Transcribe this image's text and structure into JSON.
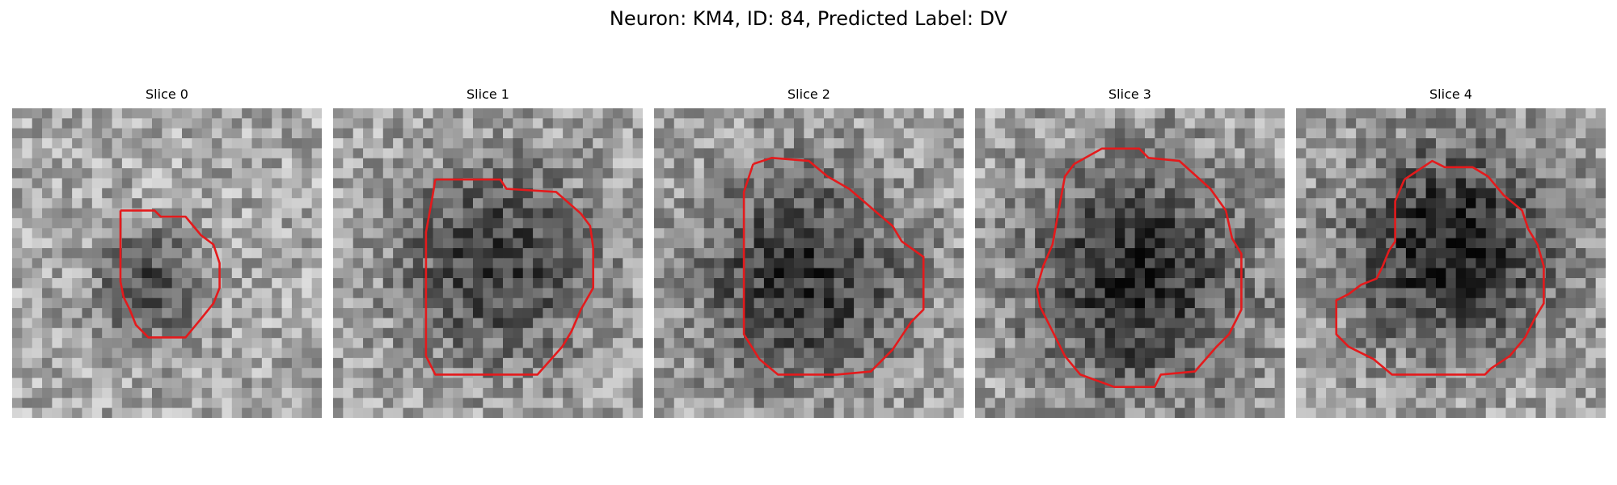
{
  "figure": {
    "suptitle": "Neuron: KM4, ID: 84, Predicted Label: DV"
  },
  "colors": {
    "background": "#ffffff",
    "contour": "#e41a1c",
    "colormap": "gray"
  },
  "slices": [
    {
      "title": "Slice 0",
      "seed": 11,
      "blob_center": [
        0.45,
        0.58
      ],
      "blob_strength": 0.4,
      "blob_radius": 0.2,
      "contour": [
        [
          0.35,
          0.33
        ],
        [
          0.46,
          0.33
        ],
        [
          0.48,
          0.35
        ],
        [
          0.56,
          0.35
        ],
        [
          0.61,
          0.41
        ],
        [
          0.65,
          0.44
        ],
        [
          0.67,
          0.5
        ],
        [
          0.67,
          0.58
        ],
        [
          0.65,
          0.63
        ],
        [
          0.61,
          0.68
        ],
        [
          0.56,
          0.74
        ],
        [
          0.44,
          0.74
        ],
        [
          0.4,
          0.7
        ],
        [
          0.38,
          0.65
        ],
        [
          0.36,
          0.61
        ],
        [
          0.35,
          0.56
        ]
      ]
    },
    {
      "title": "Slice 1",
      "seed": 23,
      "blob_center": [
        0.53,
        0.5
      ],
      "blob_strength": 0.42,
      "blob_radius": 0.38,
      "contour": [
        [
          0.33,
          0.23
        ],
        [
          0.54,
          0.23
        ],
        [
          0.56,
          0.26
        ],
        [
          0.72,
          0.27
        ],
        [
          0.8,
          0.34
        ],
        [
          0.83,
          0.38
        ],
        [
          0.84,
          0.45
        ],
        [
          0.84,
          0.58
        ],
        [
          0.8,
          0.65
        ],
        [
          0.77,
          0.72
        ],
        [
          0.74,
          0.77
        ],
        [
          0.66,
          0.86
        ],
        [
          0.33,
          0.86
        ],
        [
          0.3,
          0.8
        ],
        [
          0.3,
          0.4
        ],
        [
          0.32,
          0.29
        ]
      ]
    },
    {
      "title": "Slice 2",
      "seed": 37,
      "blob_center": [
        0.48,
        0.55
      ],
      "blob_strength": 0.45,
      "blob_radius": 0.42,
      "contour": [
        [
          0.32,
          0.18
        ],
        [
          0.38,
          0.16
        ],
        [
          0.5,
          0.17
        ],
        [
          0.56,
          0.22
        ],
        [
          0.63,
          0.26
        ],
        [
          0.7,
          0.32
        ],
        [
          0.77,
          0.38
        ],
        [
          0.8,
          0.43
        ],
        [
          0.87,
          0.48
        ],
        [
          0.87,
          0.65
        ],
        [
          0.83,
          0.69
        ],
        [
          0.77,
          0.78
        ],
        [
          0.7,
          0.85
        ],
        [
          0.59,
          0.86
        ],
        [
          0.4,
          0.86
        ],
        [
          0.34,
          0.81
        ],
        [
          0.29,
          0.73
        ],
        [
          0.29,
          0.27
        ]
      ]
    },
    {
      "title": "Slice 3",
      "seed": 41,
      "blob_center": [
        0.52,
        0.55
      ],
      "blob_strength": 0.5,
      "blob_radius": 0.44,
      "contour": [
        [
          0.32,
          0.18
        ],
        [
          0.41,
          0.13
        ],
        [
          0.53,
          0.13
        ],
        [
          0.56,
          0.16
        ],
        [
          0.66,
          0.17
        ],
        [
          0.76,
          0.26
        ],
        [
          0.81,
          0.33
        ],
        [
          0.83,
          0.42
        ],
        [
          0.86,
          0.47
        ],
        [
          0.86,
          0.65
        ],
        [
          0.82,
          0.73
        ],
        [
          0.78,
          0.77
        ],
        [
          0.71,
          0.85
        ],
        [
          0.6,
          0.86
        ],
        [
          0.58,
          0.9
        ],
        [
          0.45,
          0.9
        ],
        [
          0.34,
          0.86
        ],
        [
          0.29,
          0.8
        ],
        [
          0.25,
          0.72
        ],
        [
          0.21,
          0.64
        ],
        [
          0.2,
          0.58
        ],
        [
          0.22,
          0.51
        ],
        [
          0.25,
          0.44
        ],
        [
          0.27,
          0.33
        ],
        [
          0.29,
          0.22
        ]
      ]
    },
    {
      "title": "Slice 4",
      "seed": 53,
      "blob_center": [
        0.5,
        0.45
      ],
      "blob_strength": 0.55,
      "blob_radius": 0.4,
      "contour": [
        [
          0.35,
          0.23
        ],
        [
          0.44,
          0.17
        ],
        [
          0.48,
          0.19
        ],
        [
          0.57,
          0.19
        ],
        [
          0.62,
          0.22
        ],
        [
          0.67,
          0.28
        ],
        [
          0.73,
          0.33
        ],
        [
          0.75,
          0.39
        ],
        [
          0.78,
          0.44
        ],
        [
          0.8,
          0.51
        ],
        [
          0.8,
          0.63
        ],
        [
          0.77,
          0.68
        ],
        [
          0.74,
          0.74
        ],
        [
          0.69,
          0.8
        ],
        [
          0.63,
          0.84
        ],
        [
          0.61,
          0.86
        ],
        [
          0.31,
          0.86
        ],
        [
          0.25,
          0.81
        ],
        [
          0.17,
          0.77
        ],
        [
          0.13,
          0.73
        ],
        [
          0.13,
          0.62
        ],
        [
          0.17,
          0.6
        ],
        [
          0.21,
          0.57
        ],
        [
          0.26,
          0.55
        ],
        [
          0.28,
          0.51
        ],
        [
          0.3,
          0.46
        ],
        [
          0.32,
          0.43
        ],
        [
          0.32,
          0.3
        ]
      ]
    }
  ]
}
